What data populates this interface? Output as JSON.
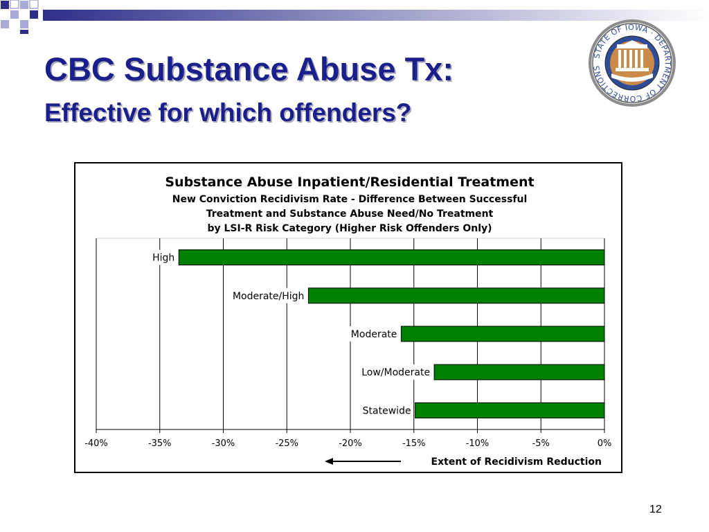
{
  "slide": {
    "title": "CBC Substance Abuse Tx:",
    "subtitle": "Effective for which offenders?",
    "page_number": "12",
    "seal_text": "STATE OF IOWA · DEPARTMENT OF CORRECTIONS"
  },
  "colors": {
    "title": "#1a1f8c",
    "bar": "#008000",
    "deco": "#2e2e8a"
  },
  "chart_data": {
    "type": "bar",
    "orientation": "horizontal",
    "title": "Substance Abuse Inpatient/Residential Treatment",
    "subtitle_lines": [
      "New Conviction Recidivism Rate - Difference Between Successful",
      "Treatment and Substance Abuse Need/No Treatment",
      "by LSI-R Risk Category (Higher Risk Offenders Only)"
    ],
    "categories": [
      "High",
      "Moderate/High",
      "Moderate",
      "Low/Moderate",
      "Statewide"
    ],
    "values": [
      -33.5,
      -23.3,
      -16.0,
      -13.4,
      -14.9
    ],
    "xlim": [
      -40,
      0
    ],
    "xticks": [
      -40,
      -35,
      -30,
      -25,
      -20,
      -15,
      -10,
      -5,
      0
    ],
    "xtick_labels": [
      "-40%",
      "-35%",
      "-30%",
      "-25%",
      "-20%",
      "-15%",
      "-10%",
      "-5%",
      "0%"
    ],
    "xlabel": "Extent of Recidivism Reduction",
    "grid": true
  }
}
